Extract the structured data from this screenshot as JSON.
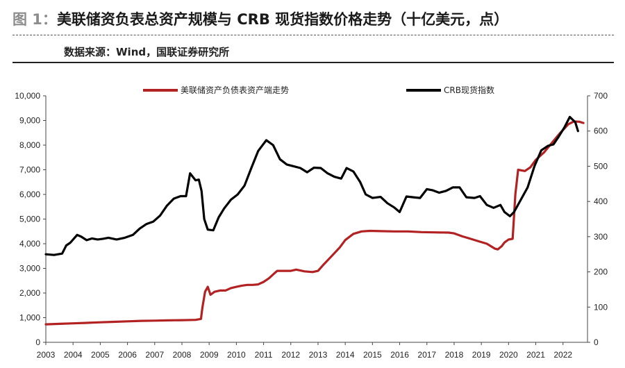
{
  "figure": {
    "label": "图 1：",
    "title": "美联储资负表总资产规模与 CRB 现货指数价格走势（十亿美元，点）",
    "source": "数据来源：Wind，国联证券研究所"
  },
  "chart_data": {
    "type": "line",
    "title": "",
    "xlabel": "",
    "ylabel": "",
    "x_ticks": [
      "2003",
      "2004",
      "2005",
      "2006",
      "2007",
      "2008",
      "2009",
      "2010",
      "2011",
      "2012",
      "2013",
      "2014",
      "2015",
      "2016",
      "2017",
      "2018",
      "2019",
      "2020",
      "2021",
      "2022"
    ],
    "x_range": [
      2003.0,
      2022.9
    ],
    "y_left": {
      "range": [
        0,
        10000
      ],
      "ticks": [
        "0",
        "1,000",
        "2,000",
        "3,000",
        "4,000",
        "5,000",
        "6,000",
        "7,000",
        "8,000",
        "9,000",
        "10,000"
      ]
    },
    "y_right": {
      "range": [
        0,
        700
      ],
      "ticks": [
        "0",
        "100",
        "200",
        "300",
        "400",
        "500",
        "600",
        "700"
      ]
    },
    "legend_position": "top",
    "grid": false,
    "series": [
      {
        "name": "美联储资产负债表资产端走势",
        "axis": "left",
        "color": "#b22222",
        "points": [
          [
            2003.0,
            730
          ],
          [
            2003.5,
            750
          ],
          [
            2004.0,
            770
          ],
          [
            2004.5,
            790
          ],
          [
            2005.0,
            810
          ],
          [
            2005.5,
            830
          ],
          [
            2006.0,
            850
          ],
          [
            2006.5,
            870
          ],
          [
            2007.0,
            880
          ],
          [
            2007.5,
            890
          ],
          [
            2008.0,
            900
          ],
          [
            2008.5,
            910
          ],
          [
            2008.7,
            950
          ],
          [
            2008.75,
            1400
          ],
          [
            2008.85,
            2050
          ],
          [
            2008.95,
            2250
          ],
          [
            2009.05,
            1930
          ],
          [
            2009.2,
            2050
          ],
          [
            2009.4,
            2100
          ],
          [
            2009.6,
            2100
          ],
          [
            2009.8,
            2200
          ],
          [
            2010.0,
            2250
          ],
          [
            2010.2,
            2300
          ],
          [
            2010.4,
            2330
          ],
          [
            2010.6,
            2330
          ],
          [
            2010.8,
            2350
          ],
          [
            2011.0,
            2450
          ],
          [
            2011.2,
            2600
          ],
          [
            2011.4,
            2800
          ],
          [
            2011.5,
            2900
          ],
          [
            2011.8,
            2900
          ],
          [
            2012.0,
            2900
          ],
          [
            2012.2,
            2950
          ],
          [
            2012.5,
            2880
          ],
          [
            2012.8,
            2850
          ],
          [
            2013.0,
            2900
          ],
          [
            2013.2,
            3150
          ],
          [
            2013.5,
            3500
          ],
          [
            2013.8,
            3850
          ],
          [
            2014.0,
            4150
          ],
          [
            2014.3,
            4400
          ],
          [
            2014.6,
            4500
          ],
          [
            2014.9,
            4520
          ],
          [
            2015.3,
            4510
          ],
          [
            2015.8,
            4500
          ],
          [
            2016.3,
            4500
          ],
          [
            2016.8,
            4470
          ],
          [
            2017.3,
            4460
          ],
          [
            2017.8,
            4450
          ],
          [
            2018.0,
            4420
          ],
          [
            2018.3,
            4300
          ],
          [
            2018.6,
            4200
          ],
          [
            2018.9,
            4100
          ],
          [
            2019.2,
            4000
          ],
          [
            2019.5,
            3800
          ],
          [
            2019.6,
            3770
          ],
          [
            2019.75,
            3900
          ],
          [
            2019.85,
            4050
          ],
          [
            2020.0,
            4170
          ],
          [
            2020.15,
            4200
          ],
          [
            2020.25,
            6000
          ],
          [
            2020.35,
            7000
          ],
          [
            2020.6,
            6950
          ],
          [
            2020.8,
            7100
          ],
          [
            2021.0,
            7400
          ],
          [
            2021.3,
            7700
          ],
          [
            2021.6,
            8100
          ],
          [
            2021.9,
            8500
          ],
          [
            2022.2,
            8850
          ],
          [
            2022.4,
            8960
          ],
          [
            2022.6,
            8950
          ],
          [
            2022.75,
            8900
          ]
        ]
      },
      {
        "name": "CRB现货指数",
        "axis": "right",
        "color": "#000000",
        "points": [
          [
            2003.0,
            250
          ],
          [
            2003.3,
            248
          ],
          [
            2003.6,
            252
          ],
          [
            2003.75,
            275
          ],
          [
            2003.9,
            283
          ],
          [
            2004.15,
            305
          ],
          [
            2004.3,
            300
          ],
          [
            2004.5,
            290
          ],
          [
            2004.7,
            295
          ],
          [
            2004.9,
            292
          ],
          [
            2005.1,
            294
          ],
          [
            2005.3,
            297
          ],
          [
            2005.6,
            292
          ],
          [
            2005.9,
            297
          ],
          [
            2006.2,
            305
          ],
          [
            2006.45,
            323
          ],
          [
            2006.7,
            336
          ],
          [
            2006.95,
            343
          ],
          [
            2007.2,
            360
          ],
          [
            2007.45,
            388
          ],
          [
            2007.7,
            408
          ],
          [
            2007.95,
            415
          ],
          [
            2008.15,
            415
          ],
          [
            2008.3,
            480
          ],
          [
            2008.5,
            460
          ],
          [
            2008.62,
            462
          ],
          [
            2008.72,
            430
          ],
          [
            2008.82,
            350
          ],
          [
            2008.95,
            320
          ],
          [
            2009.15,
            318
          ],
          [
            2009.35,
            355
          ],
          [
            2009.55,
            380
          ],
          [
            2009.8,
            405
          ],
          [
            2010.05,
            420
          ],
          [
            2010.3,
            445
          ],
          [
            2010.55,
            495
          ],
          [
            2010.8,
            543
          ],
          [
            2011.1,
            574
          ],
          [
            2011.35,
            560
          ],
          [
            2011.6,
            520
          ],
          [
            2011.85,
            505
          ],
          [
            2012.1,
            500
          ],
          [
            2012.35,
            495
          ],
          [
            2012.6,
            483
          ],
          [
            2012.85,
            496
          ],
          [
            2013.1,
            495
          ],
          [
            2013.35,
            480
          ],
          [
            2013.6,
            470
          ],
          [
            2013.85,
            465
          ],
          [
            2014.05,
            495
          ],
          [
            2014.3,
            485
          ],
          [
            2014.55,
            455
          ],
          [
            2014.75,
            420
          ],
          [
            2015.0,
            410
          ],
          [
            2015.3,
            413
          ],
          [
            2015.55,
            395
          ],
          [
            2015.8,
            383
          ],
          [
            2016.0,
            370
          ],
          [
            2016.25,
            414
          ],
          [
            2016.5,
            412
          ],
          [
            2016.75,
            410
          ],
          [
            2017.0,
            435
          ],
          [
            2017.2,
            432
          ],
          [
            2017.45,
            425
          ],
          [
            2017.7,
            430
          ],
          [
            2017.95,
            440
          ],
          [
            2018.2,
            440
          ],
          [
            2018.45,
            412
          ],
          [
            2018.75,
            410
          ],
          [
            2018.95,
            415
          ],
          [
            2019.2,
            390
          ],
          [
            2019.45,
            382
          ],
          [
            2019.7,
            390
          ],
          [
            2019.85,
            370
          ],
          [
            2020.05,
            358
          ],
          [
            2020.2,
            370
          ],
          [
            2020.45,
            405
          ],
          [
            2020.7,
            440
          ],
          [
            2020.95,
            500
          ],
          [
            2021.2,
            545
          ],
          [
            2021.45,
            558
          ],
          [
            2021.65,
            562
          ],
          [
            2021.85,
            585
          ],
          [
            2022.05,
            610
          ],
          [
            2022.25,
            640
          ],
          [
            2022.45,
            625
          ],
          [
            2022.55,
            600
          ]
        ]
      }
    ]
  }
}
